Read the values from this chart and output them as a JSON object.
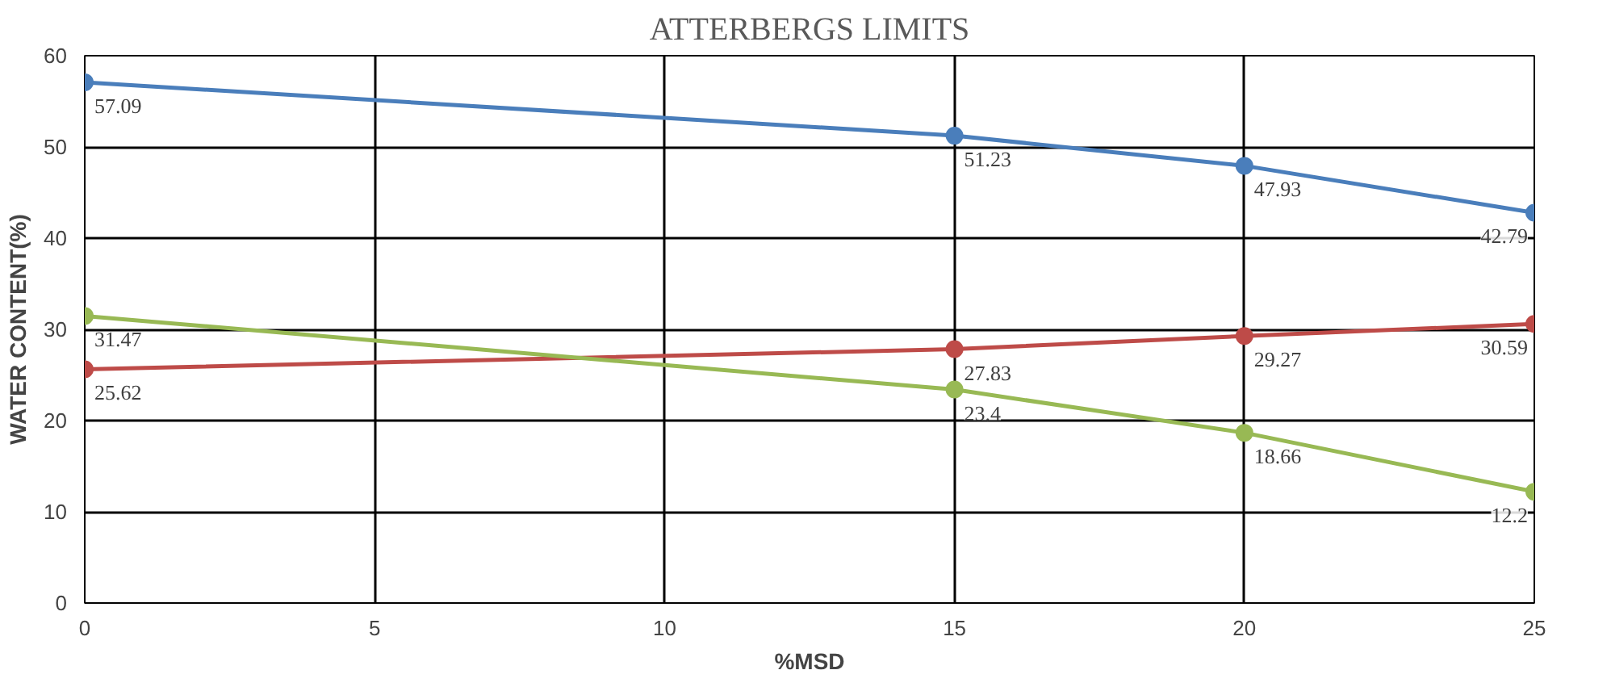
{
  "chart_data": {
    "type": "line",
    "title": "ATTERBERGS LIMITS",
    "xlabel": "%MSD",
    "ylabel": "WATER CONTENT(%)",
    "x": [
      0,
      15,
      20,
      25
    ],
    "series": [
      {
        "color": "#4a7ebb",
        "values": [
          57.09,
          51.23,
          47.93,
          42.79
        ]
      },
      {
        "color": "#be4b48",
        "values": [
          25.62,
          27.83,
          29.27,
          30.59
        ]
      },
      {
        "color": "#98b954",
        "values": [
          31.47,
          23.4,
          18.66,
          12.2
        ]
      }
    ],
    "xlim": [
      0,
      25
    ],
    "xticks": [
      0,
      5,
      10,
      15,
      20,
      25
    ],
    "ylim": [
      0,
      60
    ],
    "yticks": [
      0,
      10,
      20,
      30,
      40,
      50,
      60
    ],
    "grid": true,
    "marker": "circle",
    "line_style": "solid",
    "data_labels": true
  }
}
